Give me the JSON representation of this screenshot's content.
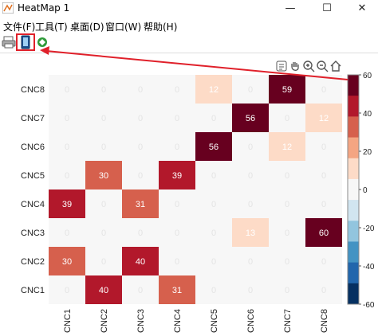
{
  "window": {
    "title": "HeatMap 1",
    "minimize": "—",
    "maximize": "☐",
    "close": "✕"
  },
  "menu": [
    "文件(F)",
    "工具(T)",
    "桌面(D)",
    "窗口(W)",
    "帮助(H)"
  ],
  "colors": {
    "arrow": "#e0202a",
    "highlight_box": "#e0202a"
  },
  "chart_data": {
    "type": "heatmap",
    "row_labels": [
      "CNC8",
      "CNC7",
      "CNC6",
      "CNC5",
      "CNC4",
      "CNC3",
      "CNC2",
      "CNC1"
    ],
    "col_labels": [
      "CNC1",
      "CNC2",
      "CNC3",
      "CNC4",
      "CNC5",
      "CNC6",
      "CNC7",
      "CNC8"
    ],
    "values": [
      [
        0,
        0,
        0,
        0,
        12,
        0,
        59,
        0
      ],
      [
        0,
        0,
        0,
        0,
        0,
        56,
        0,
        12
      ],
      [
        0,
        0,
        0,
        0,
        56,
        0,
        12,
        0
      ],
      [
        0,
        30,
        0,
        39,
        0,
        0,
        0,
        0
      ],
      [
        39,
        0,
        31,
        0,
        0,
        0,
        0,
        0
      ],
      [
        0,
        0,
        0,
        0,
        0,
        13,
        0,
        60
      ],
      [
        30,
        0,
        40,
        0,
        0,
        0,
        0,
        0
      ],
      [
        0,
        40,
        0,
        31,
        0,
        0,
        0,
        0
      ]
    ],
    "colorbar_ticks": [
      60,
      40,
      20,
      0,
      -20,
      -40,
      -60
    ],
    "colorbar_range": [
      -60,
      60
    ],
    "colorbar_colors": [
      "#053061",
      "#2166ac",
      "#4393c3",
      "#92c5de",
      "#d1e5f0",
      "#f7f7f7",
      "#fddbc7",
      "#f4a582",
      "#d6604d",
      "#b2182b",
      "#67001f"
    ],
    "grid": false,
    "legend": "colorbar-right"
  }
}
